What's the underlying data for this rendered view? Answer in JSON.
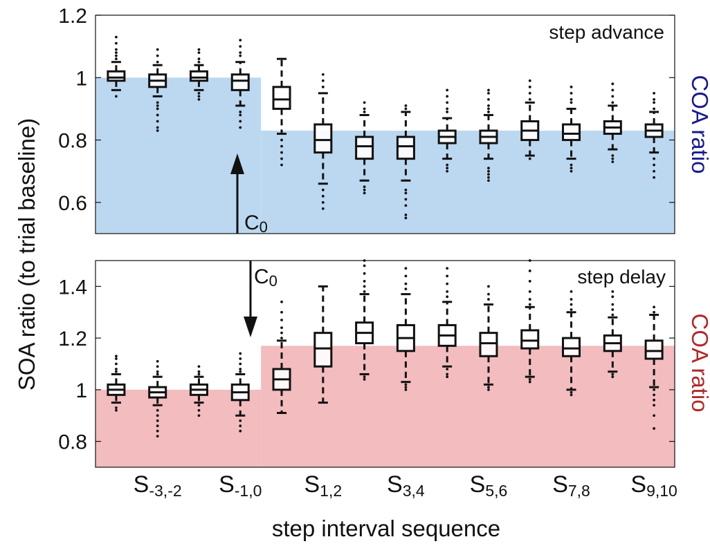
{
  "chart_data": {
    "type": "box",
    "shared_y_label": "SOA ratio (to trial baseline)",
    "x_label": "step interval sequence",
    "x_tick_labels": [
      {
        "base": "S",
        "sub": "-3,-2",
        "index": 1
      },
      {
        "base": "S",
        "sub": "-1,0",
        "index": 3
      },
      {
        "base": "S",
        "sub": "1,2",
        "index": 5
      },
      {
        "base": "S",
        "sub": "3,4",
        "index": 7
      },
      {
        "base": "S",
        "sub": "5,6",
        "index": 9
      },
      {
        "base": "S",
        "sub": "7,8",
        "index": 11
      },
      {
        "base": "S",
        "sub": "9,10",
        "index": 13
      }
    ],
    "panels": [
      {
        "name": "top",
        "annotation": "step advance",
        "right_label": "COA ratio",
        "right_label_color": "#1a1a8c",
        "fill_color": "#bcd8f1",
        "arrow_label": {
          "base": "C",
          "sub": "0"
        },
        "ylim": [
          0.5,
          1.2
        ],
        "yticks": [
          0.6,
          0.8,
          1,
          1.2
        ],
        "coa_level_before": 1.0,
        "coa_level_after": 0.83,
        "boxes": [
          {
            "q1": 0.99,
            "med": 1.0,
            "q3": 1.02,
            "wlo": 0.96,
            "whi": 1.05,
            "out": [
              1.06,
              1.07,
              1.08,
              1.09,
              1.11,
              1.13,
              0.94
            ]
          },
          {
            "q1": 0.97,
            "med": 0.99,
            "q3": 1.01,
            "wlo": 0.94,
            "whi": 1.04,
            "out": [
              1.05,
              1.07,
              1.09,
              0.92,
              0.91,
              0.9,
              0.88,
              0.86,
              0.84,
              0.83
            ]
          },
          {
            "q1": 0.99,
            "med": 1.0,
            "q3": 1.02,
            "wlo": 0.96,
            "whi": 1.04,
            "out": [
              1.05,
              1.06,
              1.08,
              1.09,
              0.95,
              0.94,
              0.93
            ]
          },
          {
            "q1": 0.96,
            "med": 0.99,
            "q3": 1.01,
            "wlo": 0.91,
            "whi": 1.05,
            "out": [
              1.07,
              1.08,
              1.1,
              1.12,
              0.89,
              0.88,
              0.86,
              0.84
            ]
          },
          {
            "q1": 0.9,
            "med": 0.93,
            "q3": 0.97,
            "wlo": 0.82,
            "whi": 1.06,
            "out": [
              0.8,
              0.78,
              0.76,
              0.74,
              0.72
            ]
          },
          {
            "q1": 0.76,
            "med": 0.8,
            "q3": 0.85,
            "wlo": 0.66,
            "whi": 0.95,
            "out": [
              0.97,
              0.99,
              1.01,
              0.64,
              0.62,
              0.6,
              0.58
            ]
          },
          {
            "q1": 0.74,
            "med": 0.78,
            "q3": 0.81,
            "wlo": 0.67,
            "whi": 0.88,
            "out": [
              0.89,
              0.9,
              0.92,
              0.65,
              0.64,
              0.63
            ]
          },
          {
            "q1": 0.74,
            "med": 0.78,
            "q3": 0.81,
            "wlo": 0.67,
            "whi": 0.89,
            "out": [
              0.9,
              0.91,
              0.64,
              0.63,
              0.61,
              0.59,
              0.56,
              0.55
            ]
          },
          {
            "q1": 0.79,
            "med": 0.81,
            "q3": 0.83,
            "wlo": 0.74,
            "whi": 0.87,
            "out": [
              0.89,
              0.9,
              0.92,
              0.94,
              0.96,
              0.72,
              0.71,
              0.7
            ]
          },
          {
            "q1": 0.79,
            "med": 0.81,
            "q3": 0.83,
            "wlo": 0.74,
            "whi": 0.88,
            "out": [
              0.89,
              0.9,
              0.91,
              0.93,
              0.95,
              0.96,
              0.71,
              0.7,
              0.69,
              0.68,
              0.67
            ]
          },
          {
            "q1": 0.8,
            "med": 0.83,
            "q3": 0.86,
            "wlo": 0.75,
            "whi": 0.92,
            "out": [
              0.93,
              0.95,
              0.97,
              0.99,
              0.74
            ]
          },
          {
            "q1": 0.8,
            "med": 0.82,
            "q3": 0.85,
            "wlo": 0.74,
            "whi": 0.9,
            "out": [
              0.92,
              0.93,
              0.95,
              0.97,
              0.72,
              0.71,
              0.7
            ]
          },
          {
            "q1": 0.82,
            "med": 0.84,
            "q3": 0.86,
            "wlo": 0.77,
            "whi": 0.91,
            "out": [
              0.92,
              0.94,
              0.96,
              0.98,
              0.75,
              0.74,
              0.73
            ]
          },
          {
            "q1": 0.81,
            "med": 0.83,
            "q3": 0.85,
            "wlo": 0.76,
            "whi": 0.89,
            "out": [
              0.9,
              0.92,
              0.93,
              0.95,
              0.74,
              0.72,
              0.7,
              0.68
            ]
          }
        ]
      },
      {
        "name": "bottom",
        "annotation": "step delay",
        "right_label": "COA ratio",
        "right_label_color": "#b02a2a",
        "fill_color": "#f3bcbf",
        "arrow_label": {
          "base": "C",
          "sub": "0"
        },
        "ylim": [
          0.7,
          1.5
        ],
        "yticks": [
          0.8,
          1,
          1.2,
          1.4
        ],
        "coa_level_before": 1.0,
        "coa_level_after": 1.17,
        "boxes": [
          {
            "q1": 0.98,
            "med": 1.0,
            "q3": 1.02,
            "wlo": 0.95,
            "whi": 1.06,
            "out": [
              1.07,
              1.08,
              1.1,
              1.12,
              1.13,
              0.93,
              0.92
            ]
          },
          {
            "q1": 0.97,
            "med": 0.99,
            "q3": 1.01,
            "wlo": 0.94,
            "whi": 1.05,
            "out": [
              1.06,
              1.07,
              1.09,
              1.11,
              0.92,
              0.9,
              0.88,
              0.86,
              0.84,
              0.82
            ]
          },
          {
            "q1": 0.98,
            "med": 1.0,
            "q3": 1.02,
            "wlo": 0.95,
            "whi": 1.05,
            "out": [
              1.06,
              1.07,
              1.09,
              0.94,
              0.92,
              0.9
            ]
          },
          {
            "q1": 0.96,
            "med": 0.99,
            "q3": 1.02,
            "wlo": 0.9,
            "whi": 1.06,
            "out": [
              1.07,
              1.08,
              1.1,
              1.12,
              1.14,
              0.88,
              0.86,
              0.84
            ]
          },
          {
            "q1": 1.0,
            "med": 1.04,
            "q3": 1.08,
            "wlo": 0.91,
            "whi": 1.19,
            "out": [
              1.2,
              1.22,
              1.24,
              1.27,
              1.3,
              1.34
            ]
          },
          {
            "q1": 1.09,
            "med": 1.16,
            "q3": 1.22,
            "wlo": 0.95,
            "whi": 1.4,
            "out": []
          },
          {
            "q1": 1.18,
            "med": 1.22,
            "q3": 1.26,
            "wlo": 1.06,
            "whi": 1.37,
            "out": [
              1.38,
              1.4,
              1.42,
              1.45,
              1.48,
              1.5,
              1.05,
              1.04
            ]
          },
          {
            "q1": 1.15,
            "med": 1.2,
            "q3": 1.25,
            "wlo": 1.03,
            "whi": 1.37,
            "out": [
              1.39,
              1.41,
              1.44,
              1.47,
              1.02,
              1.01,
              1.0
            ]
          },
          {
            "q1": 1.17,
            "med": 1.21,
            "q3": 1.25,
            "wlo": 1.09,
            "whi": 1.34,
            "out": [
              1.36,
              1.38,
              1.41,
              1.44,
              1.47,
              1.08,
              1.06,
              1.05
            ]
          },
          {
            "q1": 1.13,
            "med": 1.18,
            "q3": 1.22,
            "wlo": 1.02,
            "whi": 1.33,
            "out": [
              1.35,
              1.37,
              1.4,
              1.01,
              1.0
            ]
          },
          {
            "q1": 1.16,
            "med": 1.19,
            "q3": 1.23,
            "wlo": 1.05,
            "whi": 1.32,
            "out": [
              1.33,
              1.35,
              1.38,
              1.42,
              1.46,
              1.5,
              1.04,
              1.03
            ]
          },
          {
            "q1": 1.13,
            "med": 1.16,
            "q3": 1.2,
            "wlo": 1.0,
            "whi": 1.3,
            "out": [
              1.31,
              1.33,
              1.35,
              1.38,
              0.99,
              0.98
            ]
          },
          {
            "q1": 1.15,
            "med": 1.18,
            "q3": 1.21,
            "wlo": 1.07,
            "whi": 1.28,
            "out": [
              1.29,
              1.31,
              1.33,
              1.36,
              1.38,
              1.06,
              1.05
            ]
          },
          {
            "q1": 1.12,
            "med": 1.15,
            "q3": 1.19,
            "wlo": 1.01,
            "whi": 1.29,
            "out": [
              1.3,
              1.32,
              1.0,
              0.98,
              0.96,
              0.94,
              0.9,
              0.85
            ]
          }
        ]
      }
    ]
  }
}
